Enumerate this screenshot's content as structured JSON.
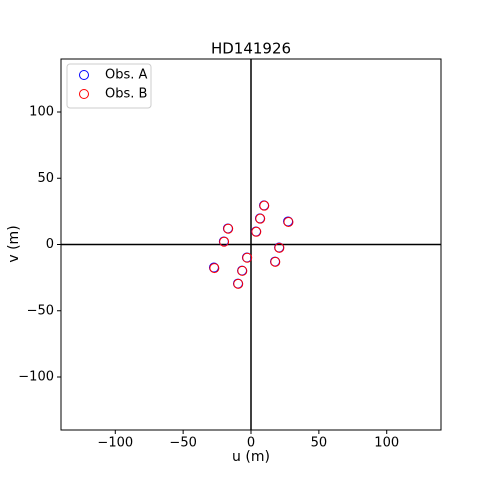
{
  "chart_data": {
    "type": "scatter",
    "title": "HD141926",
    "x_label": "u (m)",
    "y_label": "v (m)",
    "xlim": [
      -140,
      140
    ],
    "ylim": [
      -140,
      140
    ],
    "xticks": [
      {
        "value": -100,
        "label": "−100"
      },
      {
        "value": -50,
        "label": "−50"
      },
      0,
      50,
      100
    ],
    "yticks": [
      {
        "value": -100,
        "label": "−100"
      },
      {
        "value": -50,
        "label": "−50"
      },
      0,
      50,
      100
    ],
    "legend": "upper left",
    "series": [
      {
        "name": "Obs. A",
        "color": "#0000ff",
        "x": [
          9.6,
          6.6,
          27.3,
          -17,
          3.7,
          -20,
          20.7,
          -3,
          17.7,
          -27.3,
          -6.6,
          -9.6
        ],
        "values": [
          29.5,
          19.7,
          17.4,
          12.1,
          9.8,
          2.3,
          -2.3,
          -9.8,
          -12.9,
          -17.4,
          -19.7,
          -29.5
        ]
      },
      {
        "name": "Obs. B",
        "color": "#ff0000",
        "x": [
          9.8,
          6.8,
          27.6,
          -16.8,
          3.9,
          -19.8,
          20.9,
          -2.8,
          17.9,
          -27,
          -6.4,
          -9.4
        ],
        "values": [
          29.3,
          19.5,
          17,
          11.9,
          9.6,
          2.1,
          -2.5,
          -10,
          -13.1,
          -17.8,
          -19.9,
          -29.7
        ]
      }
    ]
  }
}
